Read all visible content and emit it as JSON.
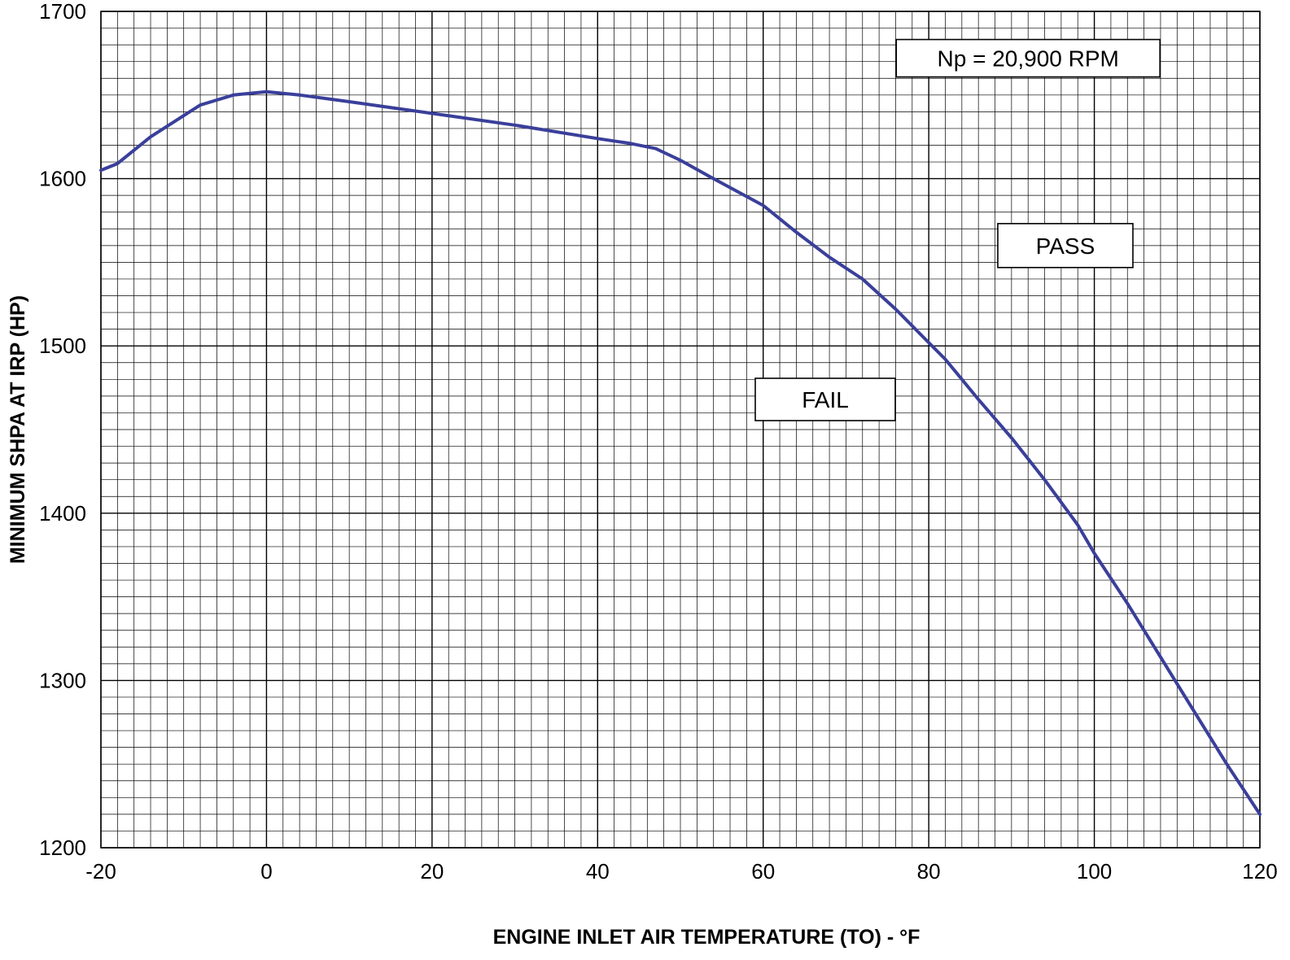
{
  "chart_data": {
    "type": "line",
    "xlabel": "ENGINE INLET AIR TEMPERATURE (TO) - °F",
    "ylabel": "MINIMUM SHPA AT IRP (HP)",
    "xlim": [
      -20,
      120
    ],
    "ylim": [
      1200,
      1700
    ],
    "xticks": [
      -20,
      0,
      20,
      40,
      60,
      80,
      100,
      120
    ],
    "yticks": [
      1200,
      1300,
      1400,
      1500,
      1600,
      1700
    ],
    "x_minor_step": 2,
    "y_minor_step": 10,
    "grid": true,
    "line_color": "#3a3f9a",
    "series": [
      {
        "x": [
          -20,
          -18,
          -14,
          -8,
          -4,
          0,
          4,
          10,
          20,
          30,
          40,
          44,
          47,
          50,
          54,
          60,
          64,
          68,
          72,
          76,
          80,
          82,
          86,
          90,
          94,
          98,
          100,
          104,
          108,
          112,
          116,
          120
        ],
        "y": [
          1605,
          1609,
          1625,
          1644,
          1650,
          1652,
          1650,
          1646,
          1639,
          1632,
          1624,
          1621,
          1618,
          1611,
          1600,
          1584,
          1568,
          1553,
          1540,
          1522,
          1502,
          1492,
          1468,
          1445,
          1420,
          1393,
          1376,
          1346,
          1314,
          1282,
          1250,
          1220
        ]
      }
    ],
    "annotations": [
      {
        "text": "Np = 20,900 RPM",
        "x": 92,
        "y": 1672
      },
      {
        "text": "PASS",
        "x": 96.5,
        "y": 1560
      },
      {
        "text": "FAIL",
        "x": 67.5,
        "y": 1468
      }
    ]
  }
}
